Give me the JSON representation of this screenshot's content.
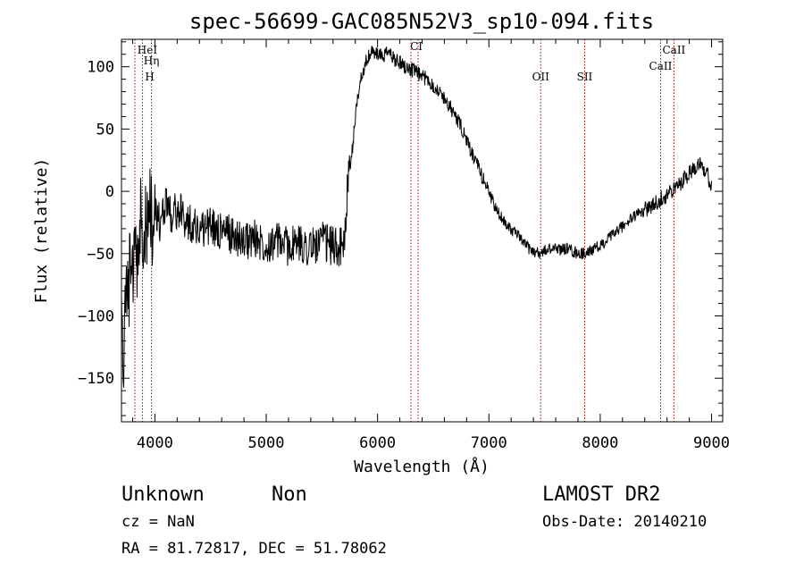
{
  "chart_data": {
    "type": "line",
    "title": "spec-56699-GAC085N52V3_sp10-094.fits",
    "xlabel": "Wavelength (Å)",
    "ylabel": "Flux (relative)",
    "xlim": [
      3700,
      9100
    ],
    "ylim": [
      -185,
      122
    ],
    "x_ticks": [
      4000,
      5000,
      6000,
      7000,
      8000,
      9000
    ],
    "y_ticks": [
      -150,
      -100,
      -50,
      0,
      50,
      100
    ],
    "grid": false,
    "line_color": "#000000",
    "marker_color": "#aa0000",
    "series": [
      {
        "x": [
          3700,
          3720,
          3740,
          3760,
          3780,
          3800,
          3820,
          3840,
          3860,
          3880,
          3900,
          3920,
          3940,
          3960,
          3980,
          4000,
          4050,
          4100,
          4150,
          4200,
          4300,
          4400,
          4500,
          4600,
          4700,
          4800,
          4900,
          5000,
          5100,
          5200,
          5300,
          5400,
          5500,
          5600,
          5700,
          5720,
          5740,
          5760,
          5780,
          5800,
          5830,
          5860,
          5900,
          5950,
          6000,
          6050,
          6100,
          6150,
          6200,
          6250,
          6300,
          6350,
          6400,
          6450,
          6500,
          6550,
          6600,
          6650,
          6700,
          6750,
          6800,
          6850,
          6900,
          6950,
          7000,
          7050,
          7100,
          7150,
          7200,
          7250,
          7300,
          7350,
          7400,
          7450,
          7500,
          7550,
          7600,
          7650,
          7700,
          7750,
          7800,
          7850,
          7900,
          7950,
          8000,
          8050,
          8100,
          8150,
          8200,
          8250,
          8300,
          8350,
          8400,
          8450,
          8500,
          8550,
          8600,
          8650,
          8700,
          8750,
          8800,
          8850,
          8900,
          8950,
          9000
        ],
        "y": [
          -90,
          -130,
          -60,
          -100,
          -40,
          -80,
          -20,
          -70,
          -50,
          -10,
          -60,
          -20,
          -40,
          0,
          -50,
          -10,
          -30,
          -5,
          -20,
          -15,
          -25,
          -30,
          -28,
          -32,
          -35,
          -40,
          -38,
          -42,
          -40,
          -44,
          -42,
          -45,
          -40,
          -44,
          -45,
          -10,
          10,
          20,
          40,
          60,
          80,
          95,
          105,
          112,
          110,
          108,
          112,
          106,
          104,
          100,
          98,
          95,
          92,
          90,
          85,
          80,
          75,
          68,
          60,
          52,
          40,
          30,
          20,
          10,
          0,
          -12,
          -20,
          -25,
          -30,
          -35,
          -40,
          -45,
          -48,
          -50,
          -48,
          -46,
          -45,
          -47,
          -46,
          -48,
          -50,
          -50,
          -48,
          -46,
          -44,
          -40,
          -36,
          -32,
          -28,
          -25,
          -20,
          -18,
          -15,
          -12,
          -10,
          -5,
          -3,
          0,
          5,
          10,
          15,
          20,
          25,
          15,
          5
        ]
      }
    ],
    "lines": [
      {
        "label": "HeI",
        "x": 3820
      },
      {
        "label": "Hη",
        "x": 3889
      },
      {
        "label": "H",
        "x": 3970
      },
      {
        "label": "CI",
        "x": 6300
      },
      {
        "label": "",
        "x": 6364
      },
      {
        "label": "OII",
        "x": 7465
      },
      {
        "label": "SII",
        "x": 7860
      },
      {
        "label": "CaII",
        "x": 8542
      },
      {
        "label": "CaII",
        "x": 8662
      }
    ]
  },
  "info": {
    "object_type": "Unknown",
    "subclass": "Non",
    "survey": "LAMOST DR2",
    "cz": "cz = NaN",
    "obs_date": "Obs-Date: 20140210",
    "coords": "RA =  81.72817, DEC =  51.78062"
  }
}
